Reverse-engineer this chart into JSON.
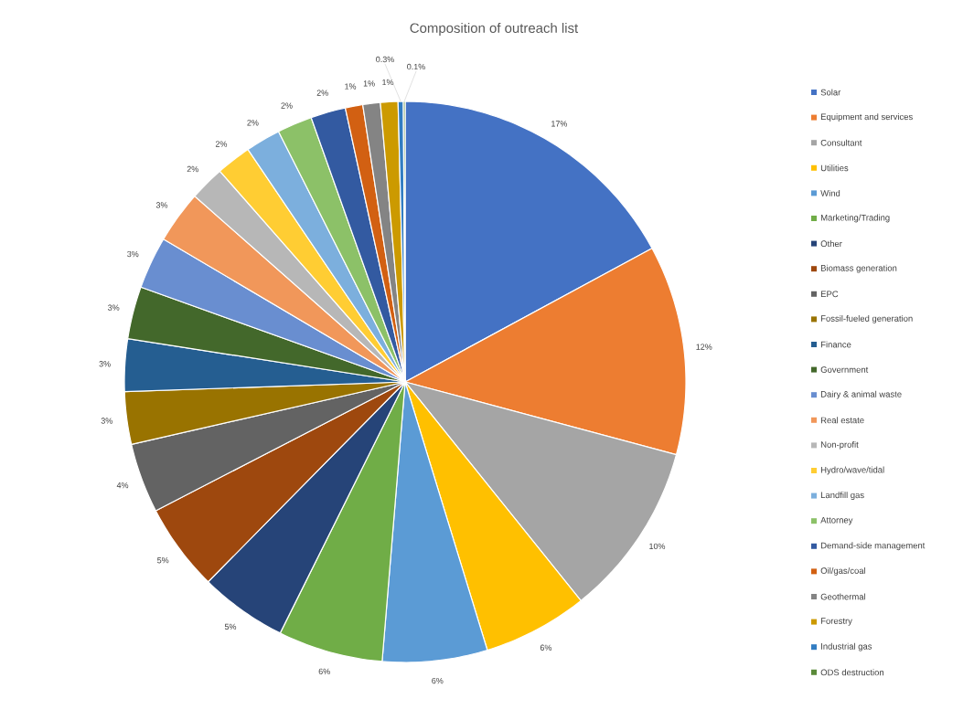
{
  "chart_data": {
    "type": "pie",
    "title": "Composition of outreach list",
    "categories": [
      "Solar",
      "Equipment and services",
      "Consultant",
      "Utilities",
      "Wind",
      "Marketing/Trading",
      "Other",
      "Biomass generation",
      "EPC",
      "Fossil-fueled generation",
      "Finance",
      "Government",
      "Dairy & animal waste",
      "Real estate",
      "Non-profit",
      "Hydro/wave/tidal",
      "Landfill gas",
      "Attorney",
      "Demand-side management",
      "Oil/gas/coal",
      "Geothermal",
      "Forestry",
      "Industrial gas",
      "ODS destruction"
    ],
    "values": [
      17,
      12,
      10,
      6,
      6,
      6,
      5,
      5,
      4,
      3,
      3,
      3,
      3,
      3,
      2,
      2,
      2,
      2,
      2,
      1,
      1,
      1,
      0.3,
      0.1
    ],
    "value_labels": [
      "17%",
      "12%",
      "10%",
      "6%",
      "6%",
      "6%",
      "5%",
      "5%",
      "4%",
      "3%",
      "3%",
      "3%",
      "3%",
      "3%",
      "2%",
      "2%",
      "2%",
      "2%",
      "2%",
      "1%",
      "1%",
      "1%",
      "0.3%",
      "0.1%"
    ],
    "colors": [
      "#4472c4",
      "#ed7d31",
      "#a5a5a5",
      "#ffc000",
      "#5b9bd5",
      "#70ad47",
      "#264478",
      "#9e480e",
      "#636363",
      "#997300",
      "#255e91",
      "#43682b",
      "#698ed0",
      "#f1975a",
      "#b7b7b7",
      "#ffcd33",
      "#7cafdd",
      "#8cc168",
      "#335aa1",
      "#d26012",
      "#848484",
      "#cc9a00",
      "#327dc2",
      "#5a8a39"
    ],
    "legend": "right"
  }
}
